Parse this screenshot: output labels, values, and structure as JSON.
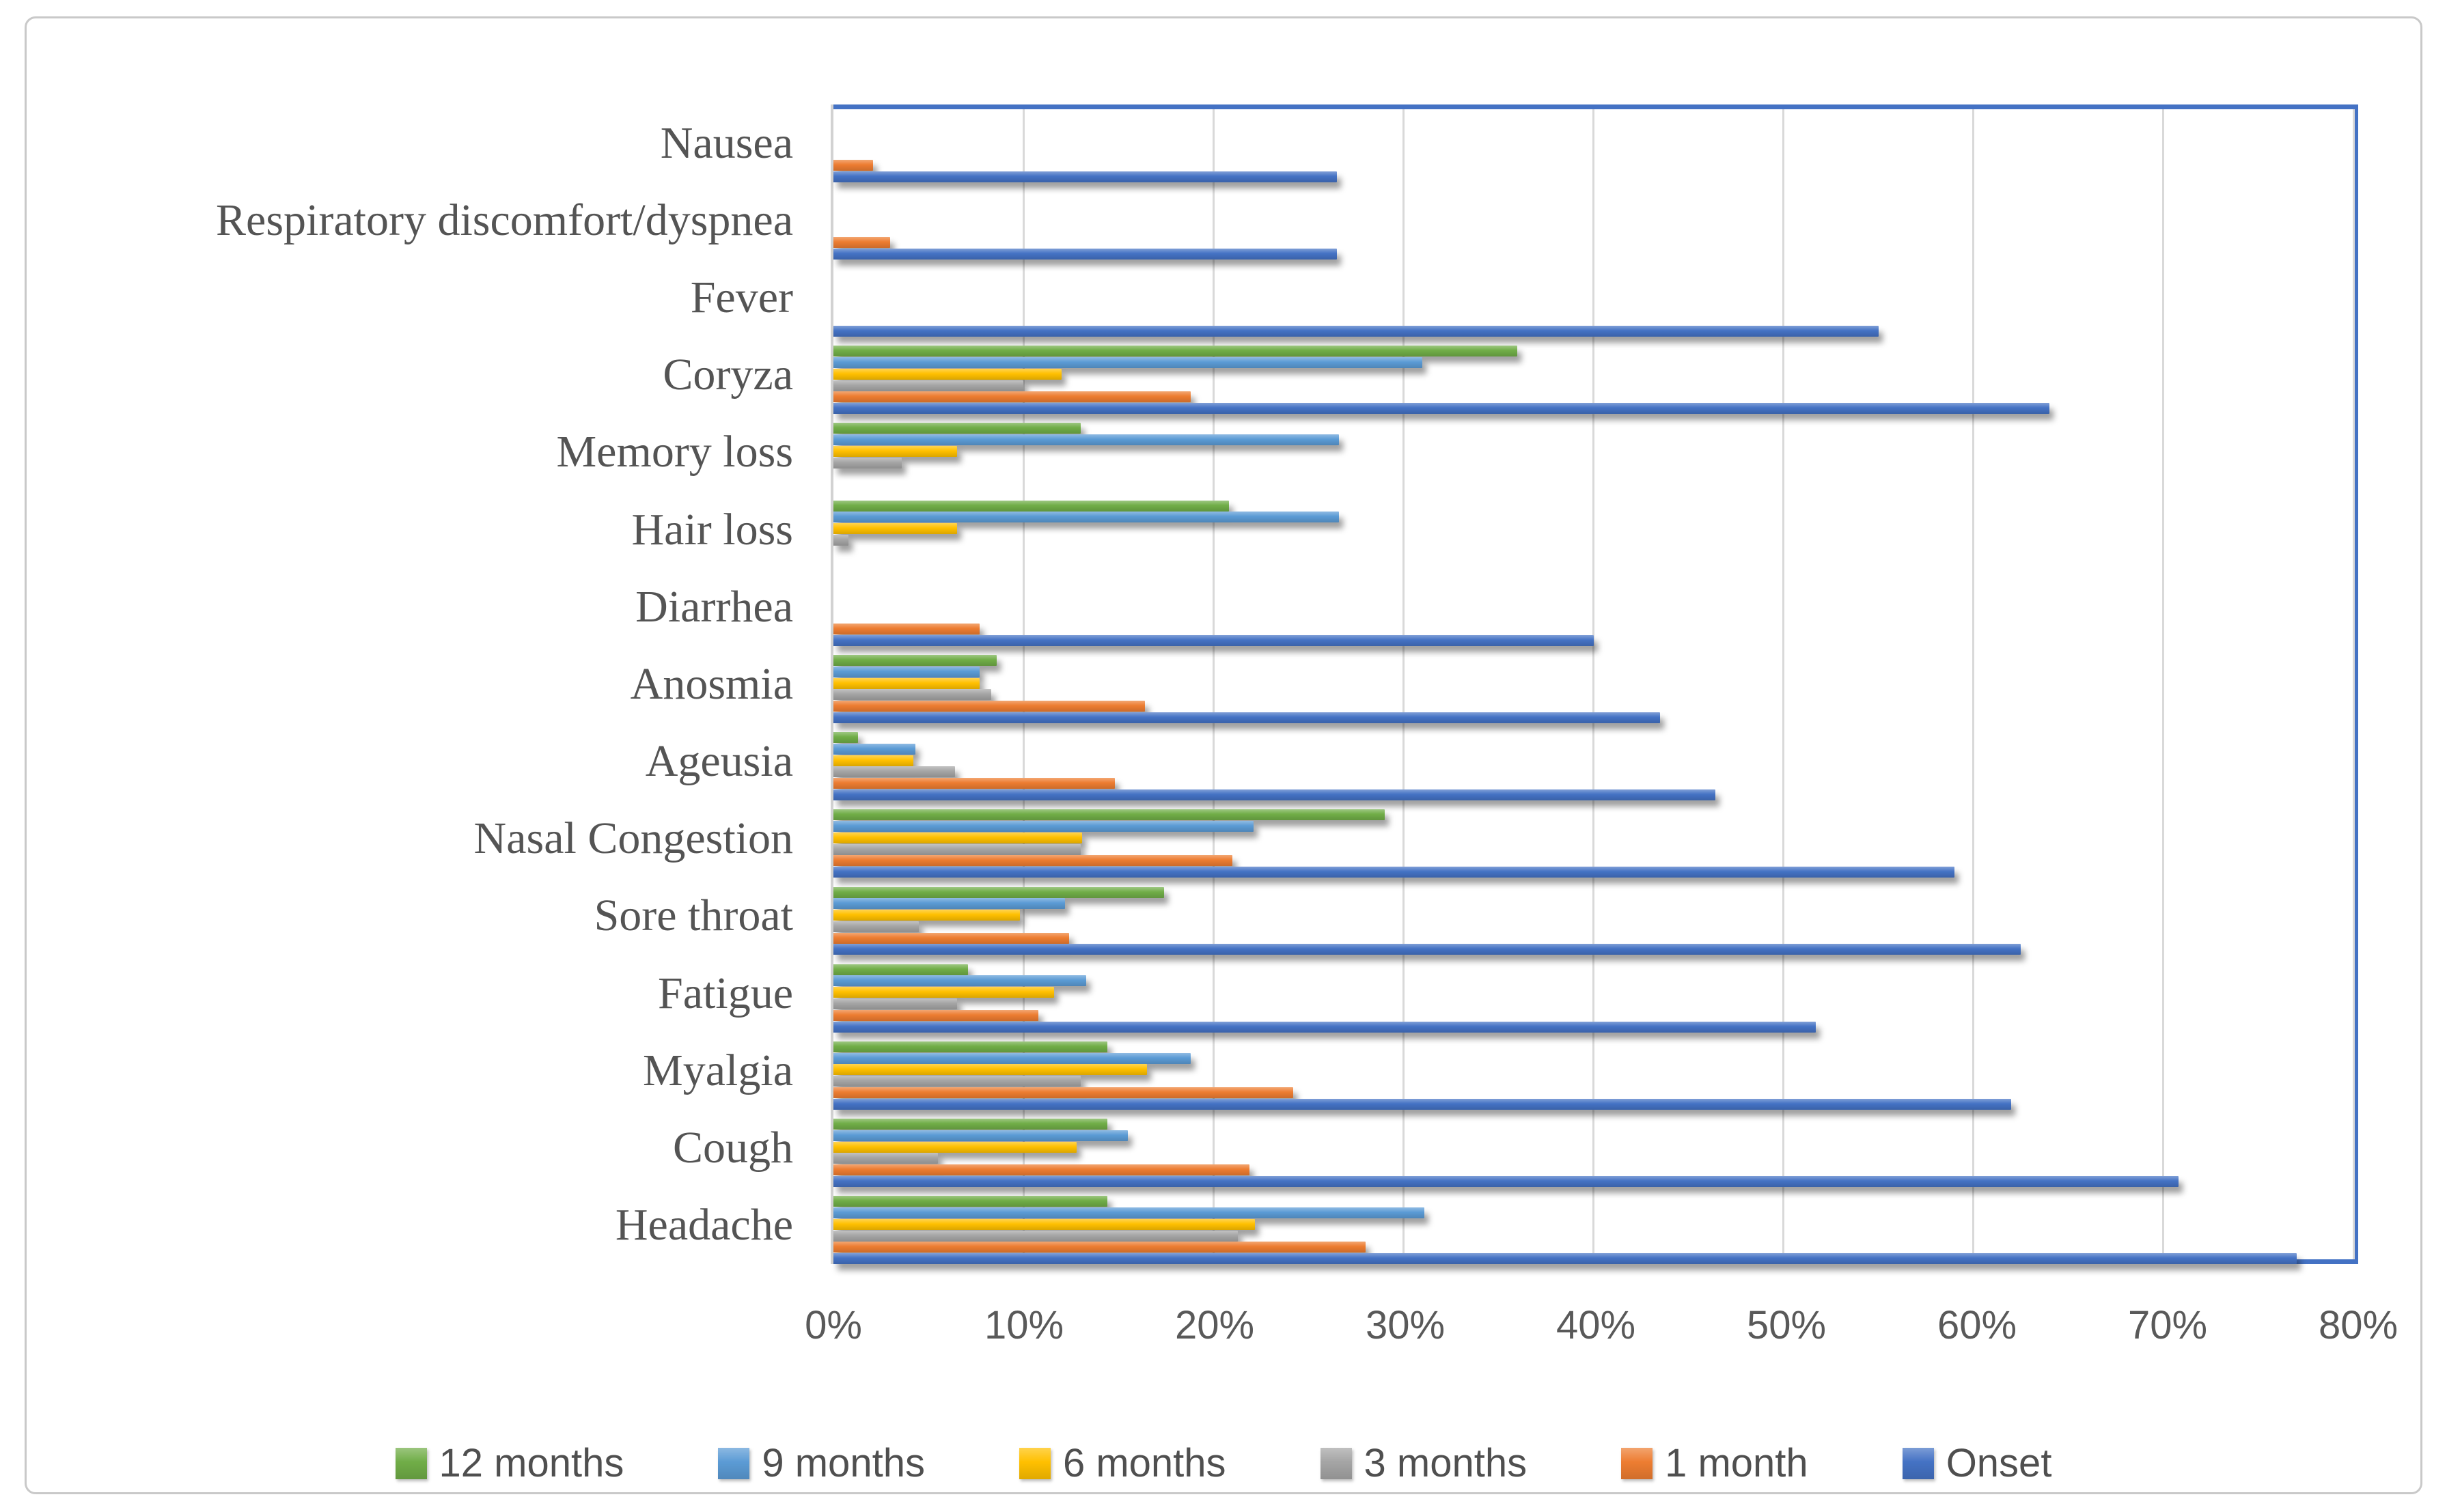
{
  "figure": {
    "background_color": "#ffffff",
    "frame_border_color": "#c9c9c9",
    "plot_border_color": "#4472C4",
    "gridline_color": "#d9d9d9",
    "axis_text_color": "#595959",
    "category_text_color": "#545454"
  },
  "chart_data": {
    "type": "bar",
    "orientation": "horizontal",
    "title": "",
    "xlabel": "",
    "ylabel": "",
    "xlim": [
      0,
      80
    ],
    "grid": true,
    "legend_position": "bottom",
    "x_ticks": [
      "0%",
      "10%",
      "20%",
      "30%",
      "40%",
      "50%",
      "60%",
      "70%",
      "80%"
    ],
    "series": [
      {
        "name": "12 months",
        "color": "#70AD47"
      },
      {
        "name": "9 months",
        "color": "#5B9BD5"
      },
      {
        "name": "6 months",
        "color": "#FFC000"
      },
      {
        "name": "3 months",
        "color": "#A5A5A5"
      },
      {
        "name": "1 month",
        "color": "#ED7D31"
      },
      {
        "name": "Onset",
        "color": "#4472C4"
      }
    ],
    "series_value_unit": "percent",
    "rows": [
      {
        "label": "Nausea",
        "values": [
          0,
          0,
          0,
          0,
          2.1,
          26.5
        ]
      },
      {
        "label": "Respiratory discomfort/dyspnea",
        "values": [
          0,
          0,
          0,
          0,
          3,
          26.5
        ]
      },
      {
        "label": "Fever",
        "values": [
          0,
          0,
          0,
          0,
          0,
          55
        ]
      },
      {
        "label": "Coryza",
        "values": [
          36,
          31,
          12,
          10,
          18.8,
          64
        ]
      },
      {
        "label": "Memory loss",
        "values": [
          13,
          26.6,
          6.5,
          3.6,
          0,
          0
        ]
      },
      {
        "label": "Hair loss",
        "values": [
          20.8,
          26.6,
          6.5,
          0.8,
          0,
          0
        ]
      },
      {
        "label": "Diarrhea",
        "values": [
          0,
          0,
          0,
          0,
          7.7,
          40
        ]
      },
      {
        "label": "Anosmia",
        "values": [
          8.6,
          7.7,
          7.7,
          8.3,
          16.4,
          43.5
        ]
      },
      {
        "label": "Ageusia",
        "values": [
          1.3,
          4.3,
          4.2,
          6.4,
          14.8,
          46.4
        ]
      },
      {
        "label": "Nasal Congestion",
        "values": [
          29,
          22.1,
          13.1,
          13,
          21,
          59
        ]
      },
      {
        "label": "Sore throat",
        "values": [
          17.4,
          12.2,
          9.8,
          4.5,
          12.4,
          62.5
        ]
      },
      {
        "label": "Fatigue",
        "values": [
          7.1,
          13.3,
          11.6,
          6.5,
          10.8,
          51.7
        ]
      },
      {
        "label": "Myalgia",
        "values": [
          14.4,
          18.8,
          16.5,
          13,
          24.2,
          62
        ]
      },
      {
        "label": "Cough",
        "values": [
          14.4,
          15.5,
          12.8,
          5.5,
          21.9,
          70.8
        ]
      },
      {
        "label": "Headache",
        "values": [
          14.4,
          31.1,
          22.2,
          21.3,
          28,
          77
        ]
      }
    ]
  }
}
